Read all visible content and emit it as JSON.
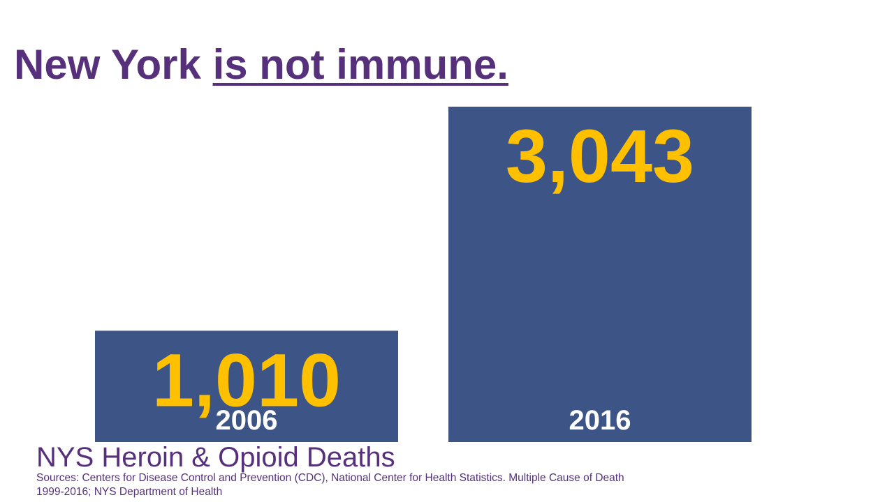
{
  "slide": {
    "title_plain": "New York ",
    "title_underlined": "is not immune.",
    "subtitle": "NYS Heroin & Opioid Deaths",
    "sources": "Sources: Centers for Disease Control and Prevention (CDC), National Center for Health Statistics. Multiple Cause of Death 1999-2016;  NYS Department of Health"
  },
  "colors": {
    "title": "#56307a",
    "bar": "#3d5586",
    "value_label": "#ffc000",
    "year_label": "#ffffff"
  },
  "chart_data": {
    "type": "bar",
    "title": "NYS Heroin & Opioid Deaths",
    "categories": [
      "2006",
      "2016"
    ],
    "values": [
      1010,
      3043
    ],
    "value_labels": [
      "1,010",
      "3,043"
    ],
    "xlabel": "",
    "ylabel": "",
    "grid": false,
    "legend": "none"
  }
}
